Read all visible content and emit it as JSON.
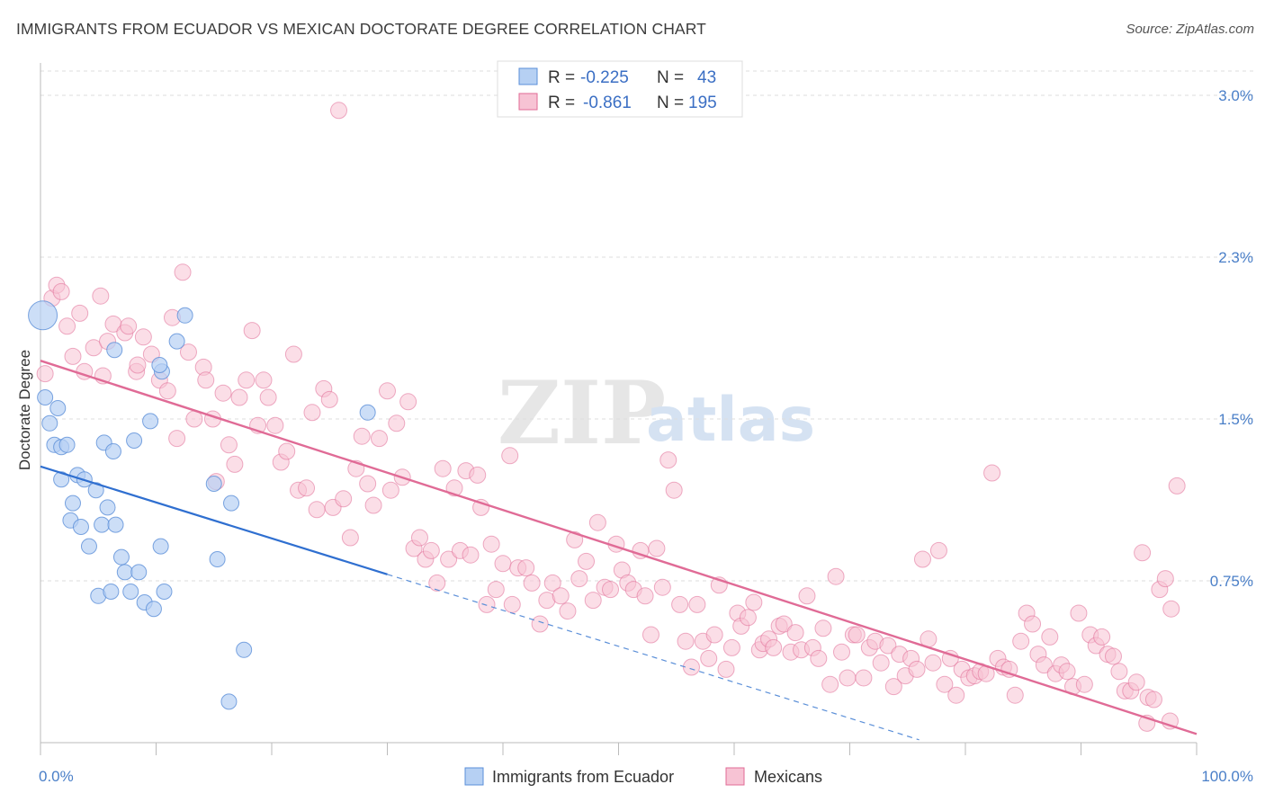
{
  "title": "IMMIGRANTS FROM ECUADOR VS MEXICAN DOCTORATE DEGREE CORRELATION CHART",
  "source": "Source: ZipAtlas.com",
  "watermark": {
    "zip": "ZIP",
    "atlas": "atlas"
  },
  "colors": {
    "blue": "#5b8fd8",
    "blue_fill": "#b6d0f3",
    "pink": "#e06b96",
    "pink_fill": "#f7c3d4",
    "tick": "#4a7fc8",
    "grid": "#dddddd"
  },
  "legend": {
    "rows": [
      {
        "r_label": "R = ",
        "r_value": "-0.225",
        "n_label": "N = ",
        "n_value": "43"
      },
      {
        "r_label": "R = ",
        "r_value": "-0.861",
        "n_label": "N = ",
        "n_value": "195"
      }
    ]
  },
  "chart_data": {
    "type": "scatter",
    "title": "IMMIGRANTS FROM ECUADOR VS MEXICAN DOCTORATE DEGREE CORRELATION CHART",
    "xlabel": "",
    "ylabel": "Doctorate Degree",
    "xlim": [
      0,
      100
    ],
    "ylim": [
      0,
      3.15
    ],
    "x_tick_labels": [
      "0.0%",
      "100.0%"
    ],
    "y_ticks": [
      0.75,
      1.5,
      2.25,
      3.0
    ],
    "y_tick_labels": [
      "0.75%",
      "1.5%",
      "2.3%",
      "3.0%"
    ],
    "grid": true,
    "legend_position": "top-center",
    "series": [
      {
        "name": "Immigrants from Ecuador",
        "color": "#5b8fd8",
        "trend": {
          "x0": 0,
          "y0": 1.28,
          "x1": 30,
          "y1": 0.78,
          "dashed_to_x": 76
        },
        "points": [
          [
            0.2,
            1.98
          ],
          [
            0.4,
            1.6
          ],
          [
            0.8,
            1.48
          ],
          [
            1.2,
            1.38
          ],
          [
            1.5,
            1.55
          ],
          [
            1.8,
            1.37
          ],
          [
            2.3,
            1.38
          ],
          [
            1.8,
            1.22
          ],
          [
            3.2,
            1.24
          ],
          [
            3.8,
            1.22
          ],
          [
            4.8,
            1.17
          ],
          [
            2.8,
            1.11
          ],
          [
            2.6,
            1.03
          ],
          [
            3.5,
            1.0
          ],
          [
            5.3,
            1.01
          ],
          [
            5.8,
            1.09
          ],
          [
            6.5,
            1.01
          ],
          [
            4.2,
            0.91
          ],
          [
            7.0,
            0.86
          ],
          [
            7.3,
            0.79
          ],
          [
            8.5,
            0.79
          ],
          [
            5.0,
            0.68
          ],
          [
            6.1,
            0.7
          ],
          [
            7.8,
            0.7
          ],
          [
            9.0,
            0.65
          ],
          [
            9.8,
            0.62
          ],
          [
            10.7,
            0.7
          ],
          [
            10.4,
            0.91
          ],
          [
            5.5,
            1.39
          ],
          [
            6.3,
            1.35
          ],
          [
            8.1,
            1.4
          ],
          [
            9.5,
            1.49
          ],
          [
            6.4,
            1.82
          ],
          [
            10.5,
            1.72
          ],
          [
            10.3,
            1.75
          ],
          [
            11.8,
            1.86
          ],
          [
            12.5,
            1.98
          ],
          [
            15.0,
            1.2
          ],
          [
            16.5,
            1.11
          ],
          [
            15.3,
            0.85
          ],
          [
            17.6,
            0.43
          ],
          [
            16.3,
            0.19
          ],
          [
            28.3,
            1.53
          ]
        ]
      },
      {
        "name": "Mexicans",
        "color": "#e06b96",
        "trend": {
          "x0": 0,
          "y0": 1.77,
          "x1": 100,
          "y1": 0.04
        },
        "points": [
          [
            0.4,
            1.71
          ],
          [
            1.0,
            2.06
          ],
          [
            1.4,
            2.12
          ],
          [
            1.8,
            2.09
          ],
          [
            2.3,
            1.93
          ],
          [
            2.8,
            1.79
          ],
          [
            3.4,
            1.99
          ],
          [
            3.8,
            1.72
          ],
          [
            4.6,
            1.83
          ],
          [
            5.2,
            2.07
          ],
          [
            5.4,
            1.7
          ],
          [
            5.8,
            1.86
          ],
          [
            6.3,
            1.94
          ],
          [
            7.3,
            1.9
          ],
          [
            7.6,
            1.93
          ],
          [
            8.3,
            1.72
          ],
          [
            8.4,
            1.75
          ],
          [
            8.9,
            1.88
          ],
          [
            9.6,
            1.8
          ],
          [
            10.3,
            1.68
          ],
          [
            11.0,
            1.63
          ],
          [
            11.4,
            1.97
          ],
          [
            11.8,
            1.41
          ],
          [
            12.3,
            2.18
          ],
          [
            12.8,
            1.81
          ],
          [
            13.3,
            1.5
          ],
          [
            14.1,
            1.74
          ],
          [
            14.3,
            1.68
          ],
          [
            14.9,
            1.5
          ],
          [
            15.2,
            1.21
          ],
          [
            15.8,
            1.62
          ],
          [
            16.3,
            1.38
          ],
          [
            16.8,
            1.29
          ],
          [
            17.2,
            1.6
          ],
          [
            17.8,
            1.68
          ],
          [
            18.3,
            1.91
          ],
          [
            18.8,
            1.47
          ],
          [
            19.3,
            1.68
          ],
          [
            19.7,
            1.6
          ],
          [
            20.3,
            1.47
          ],
          [
            20.8,
            1.3
          ],
          [
            21.3,
            1.35
          ],
          [
            21.9,
            1.8
          ],
          [
            22.3,
            1.17
          ],
          [
            23.0,
            1.18
          ],
          [
            23.5,
            1.53
          ],
          [
            23.9,
            1.08
          ],
          [
            24.5,
            1.64
          ],
          [
            25.0,
            1.59
          ],
          [
            25.3,
            1.09
          ],
          [
            25.8,
            2.93
          ],
          [
            26.2,
            1.13
          ],
          [
            26.8,
            0.95
          ],
          [
            27.3,
            1.27
          ],
          [
            27.8,
            1.42
          ],
          [
            28.3,
            1.2
          ],
          [
            28.8,
            1.1
          ],
          [
            29.3,
            1.41
          ],
          [
            30.0,
            1.63
          ],
          [
            30.3,
            1.17
          ],
          [
            30.8,
            1.48
          ],
          [
            31.3,
            1.23
          ],
          [
            31.8,
            1.58
          ],
          [
            32.3,
            0.9
          ],
          [
            32.8,
            0.95
          ],
          [
            33.3,
            0.85
          ],
          [
            33.8,
            0.89
          ],
          [
            34.3,
            0.74
          ],
          [
            34.8,
            1.27
          ],
          [
            35.3,
            0.85
          ],
          [
            35.8,
            1.18
          ],
          [
            36.3,
            0.89
          ],
          [
            36.8,
            1.26
          ],
          [
            37.2,
            0.87
          ],
          [
            37.8,
            1.24
          ],
          [
            38.1,
            1.09
          ],
          [
            38.6,
            0.64
          ],
          [
            39.0,
            0.92
          ],
          [
            39.4,
            0.71
          ],
          [
            40.0,
            0.83
          ],
          [
            40.6,
            1.33
          ],
          [
            40.8,
            0.64
          ],
          [
            41.3,
            0.81
          ],
          [
            42.0,
            0.81
          ],
          [
            42.5,
            0.74
          ],
          [
            43.2,
            0.55
          ],
          [
            43.8,
            0.66
          ],
          [
            44.3,
            0.74
          ],
          [
            45.0,
            0.68
          ],
          [
            45.6,
            0.61
          ],
          [
            46.2,
            0.94
          ],
          [
            46.6,
            0.76
          ],
          [
            47.2,
            0.84
          ],
          [
            47.8,
            0.66
          ],
          [
            48.2,
            1.02
          ],
          [
            48.8,
            0.72
          ],
          [
            49.3,
            0.71
          ],
          [
            49.8,
            0.92
          ],
          [
            50.3,
            0.8
          ],
          [
            50.8,
            0.74
          ],
          [
            51.3,
            0.71
          ],
          [
            51.9,
            0.89
          ],
          [
            52.3,
            0.68
          ],
          [
            52.8,
            0.5
          ],
          [
            53.3,
            0.9
          ],
          [
            53.8,
            0.72
          ],
          [
            54.3,
            1.31
          ],
          [
            54.8,
            1.17
          ],
          [
            55.3,
            0.64
          ],
          [
            55.8,
            0.47
          ],
          [
            56.3,
            0.35
          ],
          [
            56.8,
            0.64
          ],
          [
            57.3,
            0.47
          ],
          [
            57.8,
            0.39
          ],
          [
            58.3,
            0.5
          ],
          [
            58.7,
            0.73
          ],
          [
            59.3,
            0.34
          ],
          [
            59.8,
            0.44
          ],
          [
            60.3,
            0.6
          ],
          [
            60.6,
            0.54
          ],
          [
            61.2,
            0.58
          ],
          [
            61.7,
            0.65
          ],
          [
            62.2,
            0.43
          ],
          [
            62.5,
            0.46
          ],
          [
            63.0,
            0.48
          ],
          [
            63.4,
            0.44
          ],
          [
            63.9,
            0.54
          ],
          [
            64.3,
            0.55
          ],
          [
            64.9,
            0.42
          ],
          [
            65.3,
            0.51
          ],
          [
            65.8,
            0.43
          ],
          [
            66.3,
            0.68
          ],
          [
            66.8,
            0.44
          ],
          [
            67.3,
            0.39
          ],
          [
            67.7,
            0.53
          ],
          [
            68.3,
            0.27
          ],
          [
            68.8,
            0.77
          ],
          [
            69.3,
            0.42
          ],
          [
            69.8,
            0.3
          ],
          [
            70.3,
            0.5
          ],
          [
            70.6,
            0.5
          ],
          [
            71.2,
            0.3
          ],
          [
            71.7,
            0.44
          ],
          [
            72.2,
            0.47
          ],
          [
            72.7,
            0.37
          ],
          [
            73.3,
            0.45
          ],
          [
            73.8,
            0.26
          ],
          [
            74.3,
            0.41
          ],
          [
            74.8,
            0.31
          ],
          [
            75.3,
            0.39
          ],
          [
            75.8,
            0.34
          ],
          [
            76.3,
            0.85
          ],
          [
            76.8,
            0.48
          ],
          [
            77.2,
            0.37
          ],
          [
            77.7,
            0.89
          ],
          [
            78.2,
            0.27
          ],
          [
            78.7,
            0.39
          ],
          [
            79.2,
            0.22
          ],
          [
            79.7,
            0.34
          ],
          [
            80.3,
            0.3
          ],
          [
            80.8,
            0.31
          ],
          [
            81.3,
            0.33
          ],
          [
            81.8,
            0.32
          ],
          [
            82.3,
            1.25
          ],
          [
            82.8,
            0.39
          ],
          [
            83.3,
            0.35
          ],
          [
            83.8,
            0.34
          ],
          [
            84.3,
            0.22
          ],
          [
            84.8,
            0.47
          ],
          [
            85.3,
            0.6
          ],
          [
            85.8,
            0.55
          ],
          [
            86.3,
            0.41
          ],
          [
            86.8,
            0.36
          ],
          [
            87.3,
            0.49
          ],
          [
            87.8,
            0.32
          ],
          [
            88.3,
            0.36
          ],
          [
            88.8,
            0.33
          ],
          [
            89.3,
            0.26
          ],
          [
            89.8,
            0.6
          ],
          [
            90.3,
            0.27
          ],
          [
            90.8,
            0.5
          ],
          [
            91.3,
            0.45
          ],
          [
            91.8,
            0.49
          ],
          [
            92.3,
            0.41
          ],
          [
            92.8,
            0.4
          ],
          [
            93.3,
            0.33
          ],
          [
            93.8,
            0.24
          ],
          [
            94.3,
            0.24
          ],
          [
            94.8,
            0.28
          ],
          [
            95.3,
            0.88
          ],
          [
            95.8,
            0.21
          ],
          [
            96.3,
            0.2
          ],
          [
            96.8,
            0.71
          ],
          [
            97.3,
            0.76
          ],
          [
            97.8,
            0.62
          ],
          [
            98.3,
            1.19
          ],
          [
            95.7,
            0.09
          ],
          [
            97.7,
            0.1
          ]
        ]
      }
    ]
  }
}
